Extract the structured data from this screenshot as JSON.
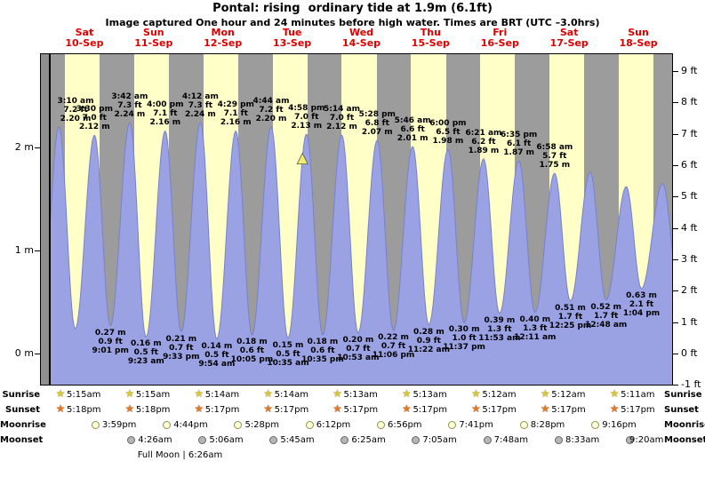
{
  "title": "Pontal: rising  ordinary tide at 1.9m (6.1ft)",
  "subtitle": "Image captured One hour and 24 minutes before high water. Times are BRT (UTC –3.0hrs)",
  "days": [
    {
      "name": "Sat",
      "date": "10-Sep"
    },
    {
      "name": "Sun",
      "date": "11-Sep"
    },
    {
      "name": "Mon",
      "date": "12-Sep"
    },
    {
      "name": "Tue",
      "date": "13-Sep"
    },
    {
      "name": "Wed",
      "date": "14-Sep"
    },
    {
      "name": "Thu",
      "date": "15-Sep"
    },
    {
      "name": "Fri",
      "date": "16-Sep"
    },
    {
      "name": "Sat",
      "date": "17-Sep"
    },
    {
      "name": "Sun",
      "date": "18-Sep"
    }
  ],
  "chart_data": {
    "type": "area",
    "title": "Pontal tide height over 9 days",
    "x_range": "Sat 10-Sep 00:00 to Sun 18-Sep 24:00 (9 days)",
    "ylim_m": [
      -0.31,
      2.91
    ],
    "y_left_ticks": [
      {
        "label": "2 m",
        "value": 2
      },
      {
        "label": "1 m",
        "value": 1
      },
      {
        "label": "0 m",
        "value": 0
      }
    ],
    "y_right_ticks": [
      {
        "label": "9 ft",
        "value": 9
      },
      {
        "label": "8 ft",
        "value": 8
      },
      {
        "label": "7 ft",
        "value": 7
      },
      {
        "label": "6 ft",
        "value": 6
      },
      {
        "label": "5 ft",
        "value": 5
      },
      {
        "label": "4 ft",
        "value": 4
      },
      {
        "label": "3 ft",
        "value": 3
      },
      {
        "label": "2 ft",
        "value": 2
      },
      {
        "label": "1 ft",
        "value": 1
      },
      {
        "label": "0 ft",
        "value": 0
      },
      {
        "label": "-1 ft",
        "value": -1
      }
    ],
    "highs": [
      {
        "t": 3.17,
        "level": 2.2,
        "time": "3:10 am",
        "ft": "7.2 ft",
        "m": "2.20 m"
      },
      {
        "t": 15.5,
        "level": 2.12,
        "time": "3:30 pm",
        "ft": "7.0 ft",
        "m": "2.12 m"
      },
      {
        "t": 27.7,
        "level": 2.24,
        "time": "3:42 am",
        "ft": "7.3 ft",
        "m": "2.24 m"
      },
      {
        "t": 40.0,
        "level": 2.16,
        "time": "4:00 pm",
        "ft": "7.1 ft",
        "m": "2.16 m"
      },
      {
        "t": 52.2,
        "level": 2.24,
        "time": "4:12 am",
        "ft": "7.3 ft",
        "m": "2.24 m"
      },
      {
        "t": 64.48,
        "level": 2.16,
        "time": "4:29 pm",
        "ft": "7.1 ft",
        "m": "2.16 m"
      },
      {
        "t": 76.73,
        "level": 2.2,
        "time": "4:44 am",
        "ft": "7.2 ft",
        "m": "2.20 m"
      },
      {
        "t": 88.97,
        "level": 2.13,
        "time": "4:58 pm",
        "ft": "7.0 ft",
        "m": "2.13 m"
      },
      {
        "t": 101.23,
        "level": 2.12,
        "time": "5:14 am",
        "ft": "7.0 ft",
        "m": "2.12 m"
      },
      {
        "t": 113.47,
        "level": 2.07,
        "time": "5:28 pm",
        "ft": "6.8 ft",
        "m": "2.07 m"
      },
      {
        "t": 125.77,
        "level": 2.01,
        "time": "5:46 am",
        "ft": "6.6 ft",
        "m": "2.01 m"
      },
      {
        "t": 138.0,
        "level": 1.98,
        "time": "6:00 pm",
        "ft": "6.5 ft",
        "m": "1.98 m"
      },
      {
        "t": 150.35,
        "level": 1.89,
        "time": "6:21 am",
        "ft": "6.2 ft",
        "m": "1.89 m"
      },
      {
        "t": 162.58,
        "level": 1.87,
        "time": "6:35 pm",
        "ft": "6.1 ft",
        "m": "1.87 m"
      },
      {
        "t": 174.97,
        "level": 1.75,
        "time": "6:58 am",
        "ft": "5.7 ft",
        "m": "1.75 m"
      }
    ],
    "lows": [
      {
        "t": 21.02,
        "level": 0.27,
        "m": "0.27 m",
        "ft": "0.9 ft",
        "time": "9:01 pm"
      },
      {
        "t": 33.38,
        "level": 0.16,
        "m": "0.16 m",
        "ft": "0.5 ft",
        "time": "9:23 am"
      },
      {
        "t": 45.55,
        "level": 0.21,
        "m": "0.21 m",
        "ft": "0.7 ft",
        "time": "9:33 pm"
      },
      {
        "t": 57.9,
        "level": 0.14,
        "m": "0.14 m",
        "ft": "0.5 ft",
        "time": "9:54 am"
      },
      {
        "t": 70.08,
        "level": 0.18,
        "m": "0.18 m",
        "ft": "0.6 ft",
        "time": "10:05 pm"
      },
      {
        "t": 82.58,
        "level": 0.15,
        "m": "0.15 m",
        "ft": "0.5 ft",
        "time": "10:35 am"
      },
      {
        "t": 94.58,
        "level": 0.18,
        "m": "0.18 m",
        "ft": "0.6 ft",
        "time": "10:35 pm"
      },
      {
        "t": 106.88,
        "level": 0.2,
        "m": "0.20 m",
        "ft": "0.7 ft",
        "time": "10:53 am"
      },
      {
        "t": 119.1,
        "level": 0.22,
        "m": "0.22 m",
        "ft": "0.7 ft",
        "time": "11:06 pm"
      },
      {
        "t": 131.37,
        "level": 0.28,
        "m": "0.28 m",
        "ft": "0.9 ft",
        "time": "11:22 am"
      },
      {
        "t": 143.62,
        "level": 0.3,
        "m": "0.30 m",
        "ft": "1.0 ft",
        "time": "11:37 pm"
      },
      {
        "t": 155.88,
        "level": 0.39,
        "m": "0.39 m",
        "ft": "1.3 ft",
        "time": "11:53 am"
      },
      {
        "t": 168.18,
        "level": 0.4,
        "m": "0.40 m",
        "ft": "1.3 ft",
        "time": "12:11 am"
      },
      {
        "t": 180.42,
        "level": 0.51,
        "m": "0.51 m",
        "ft": "1.7 ft",
        "time": "12:25 pm"
      },
      {
        "t": 192.8,
        "level": 0.52,
        "m": "0.52 m",
        "ft": "1.7 ft",
        "time": "12:48 am"
      },
      {
        "t": 205.07,
        "level": 0.63,
        "m": "0.63 m",
        "ft": "2.1 ft",
        "time": "1:04 pm"
      }
    ],
    "unlabeled_edge_extremes": [
      {
        "t": -3.0,
        "level": 0.27
      },
      {
        "t": 8.8,
        "level": 0.24
      },
      {
        "t": 187.3,
        "level": 1.76
      },
      {
        "t": 199.8,
        "level": 1.62
      },
      {
        "t": 212.4,
        "level": 1.65
      },
      {
        "t": 218.0,
        "level": 0.65
      }
    ],
    "marker": {
      "t": 87.57,
      "level": 1.9
    },
    "colors": {
      "day_band": "#ffffc8",
      "night_band": "#9c9c9c",
      "gutter": "#8f8f8f",
      "tide_fill": "#9aa2e4",
      "tide_edge": "#7880cc",
      "header_red": "#dd0000",
      "marker_yellow": "#f2ef6e"
    }
  },
  "astro": {
    "rows": [
      {
        "label": "Sunrise",
        "icon": "sunrise-icon",
        "shape": "star",
        "icon_color": "#d9c43a",
        "icon_edge": "#7a6a10",
        "items": [
          {
            "day": 0,
            "time": "5:15am"
          },
          {
            "day": 1,
            "time": "5:15am"
          },
          {
            "day": 2,
            "time": "5:14am"
          },
          {
            "day": 3,
            "time": "5:14am"
          },
          {
            "day": 4,
            "time": "5:13am"
          },
          {
            "day": 5,
            "time": "5:13am"
          },
          {
            "day": 6,
            "time": "5:12am"
          },
          {
            "day": 7,
            "time": "5:12am"
          },
          {
            "day": 8,
            "time": "5:11am"
          }
        ]
      },
      {
        "label": "Sunset",
        "icon": "sunset-icon",
        "shape": "star",
        "icon_color": "#e07a28",
        "icon_edge": "#7a3a10",
        "items": [
          {
            "day": 0,
            "time": "5:18pm"
          },
          {
            "day": 1,
            "time": "5:18pm"
          },
          {
            "day": 2,
            "time": "5:17pm"
          },
          {
            "day": 3,
            "time": "5:17pm"
          },
          {
            "day": 4,
            "time": "5:17pm"
          },
          {
            "day": 5,
            "time": "5:17pm"
          },
          {
            "day": 6,
            "time": "5:17pm"
          },
          {
            "day": 7,
            "time": "5:17pm"
          },
          {
            "day": 8,
            "time": "5:17pm"
          }
        ]
      },
      {
        "label": "Moonrise",
        "icon": "moonrise-icon",
        "shape": "circle",
        "icon_color": "#ffffd6",
        "icon_edge": "#8f8f55",
        "items": [
          {
            "day": 0,
            "time": "3:59pm"
          },
          {
            "day": 1,
            "time": "4:44pm"
          },
          {
            "day": 2,
            "time": "5:28pm"
          },
          {
            "day": 3,
            "time": "6:12pm"
          },
          {
            "day": 4,
            "time": "6:56pm"
          },
          {
            "day": 5,
            "time": "7:41pm"
          },
          {
            "day": 6,
            "time": "8:28pm"
          },
          {
            "day": 7,
            "time": "9:16pm"
          }
        ]
      },
      {
        "label": "Moonset",
        "icon": "moonset-icon",
        "shape": "circle",
        "icon_color": "#b6b6b6",
        "icon_edge": "#666666",
        "items": [
          {
            "day": 1,
            "time": "4:26am"
          },
          {
            "day": 2,
            "time": "5:06am"
          },
          {
            "day": 3,
            "time": "5:45am"
          },
          {
            "day": 4,
            "time": "6:25am"
          },
          {
            "day": 5,
            "time": "7:05am"
          },
          {
            "day": 6,
            "time": "7:48am"
          },
          {
            "day": 7,
            "time": "8:33am"
          },
          {
            "day": 8,
            "time": "9:20am"
          }
        ]
      }
    ],
    "footnote": "Full Moon | 6:26am"
  }
}
